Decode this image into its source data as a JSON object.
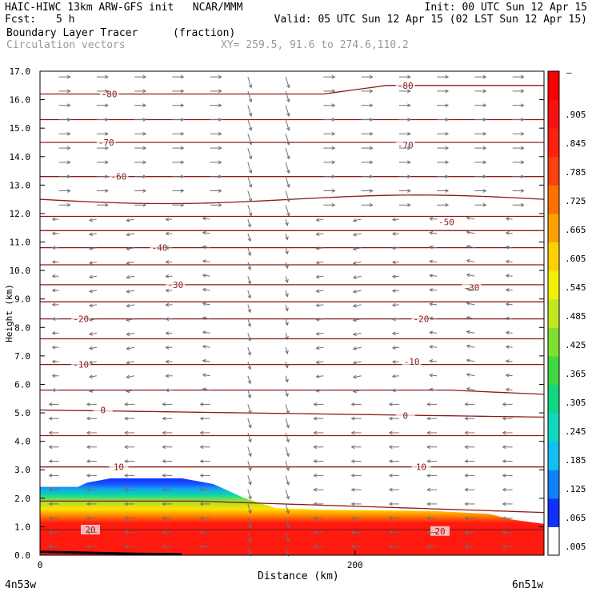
{
  "header": {
    "line1_left": "HAIC-HIWC 13km ARW-GFS init   NCAR/MMM",
    "line1_right": "Init: 00 UTC Sun 12 Apr 15",
    "fcst_label": "Fcst:",
    "fcst_value": "5 h",
    "valid": "Valid: 05 UTC Sun 12 Apr 15 (02 LST Sun 12 Apr 15)",
    "field_name": "Boundary Layer Tracer",
    "field_units": "(fraction)",
    "vector_label": "Circulation vectors",
    "xy_label": "XY= 259.5, 91.6 to 274.6,110.2"
  },
  "chart_data": {
    "type": "heatmap",
    "ylabel": "Height (km)",
    "xlabel": "Distance (km)",
    "ylim": [
      0,
      17
    ],
    "xlim": [
      0,
      320
    ],
    "yticks": [
      "0.0",
      "1.0",
      "2.0",
      "3.0",
      "4.0",
      "5.0",
      "6.0",
      "7.0",
      "8.0",
      "9.0",
      "10.0",
      "11.0",
      "12.0",
      "13.0",
      "14.0",
      "15.0",
      "16.0",
      "17.0"
    ],
    "xticks": [
      {
        "value": 0,
        "label": "0"
      },
      {
        "value": 200,
        "label": "200"
      }
    ],
    "x_endpoint_labels": [
      "4n53w",
      "6n51w"
    ],
    "contour_labels": [
      {
        "label": "-80",
        "x": 44,
        "y": 16.2
      },
      {
        "label": "-80",
        "x": 232,
        "y": 16.5
      },
      {
        "label": "-70",
        "x": 42,
        "y": 14.5
      },
      {
        "label": "-70",
        "x": 232,
        "y": 14.4
      },
      {
        "label": "-60",
        "x": 50,
        "y": 13.3
      },
      {
        "label": "-50",
        "x": 258,
        "y": 11.7
      },
      {
        "label": "-40",
        "x": 76,
        "y": 10.8
      },
      {
        "label": "-30",
        "x": 86,
        "y": 9.5
      },
      {
        "label": "-30",
        "x": 274,
        "y": 9.4
      },
      {
        "label": "-20",
        "x": 26,
        "y": 8.3
      },
      {
        "label": "-20",
        "x": 242,
        "y": 8.3
      },
      {
        "label": "-10",
        "x": 26,
        "y": 6.7
      },
      {
        "label": "-10",
        "x": 236,
        "y": 6.8
      },
      {
        "label": "0",
        "x": 40,
        "y": 5.1
      },
      {
        "label": "0",
        "x": 232,
        "y": 4.9
      },
      {
        "label": "10",
        "x": 50,
        "y": 3.1
      },
      {
        "label": "10",
        "x": 242,
        "y": 3.1
      },
      {
        "label": "20",
        "x": 32,
        "y": 0.9
      },
      {
        "label": "20",
        "x": 254,
        "y": 0.85
      }
    ],
    "colorbar": {
      "labels": [
        ".905",
        ".845",
        ".785",
        ".725",
        ".665",
        ".605",
        ".545",
        ".485",
        ".425",
        ".365",
        ".305",
        ".245",
        ".185",
        ".125",
        ".065",
        ".005"
      ],
      "top_label": "–"
    }
  }
}
